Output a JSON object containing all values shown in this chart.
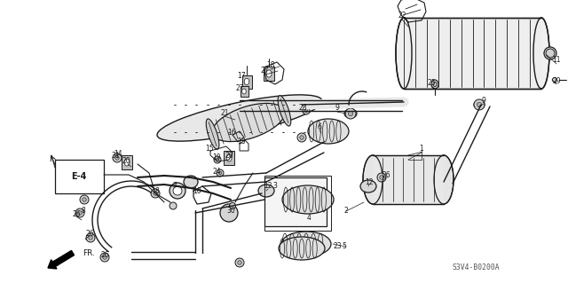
{
  "background_color": "#ffffff",
  "diagram_code": "S3V4-B0200A",
  "fig_width": 6.4,
  "fig_height": 3.19,
  "dpi": 100,
  "line_color": "#1a1a1a",
  "text_color": "#1a1a1a",
  "label_fontsize": 5.5,
  "diagram_fontsize": 5.8
}
